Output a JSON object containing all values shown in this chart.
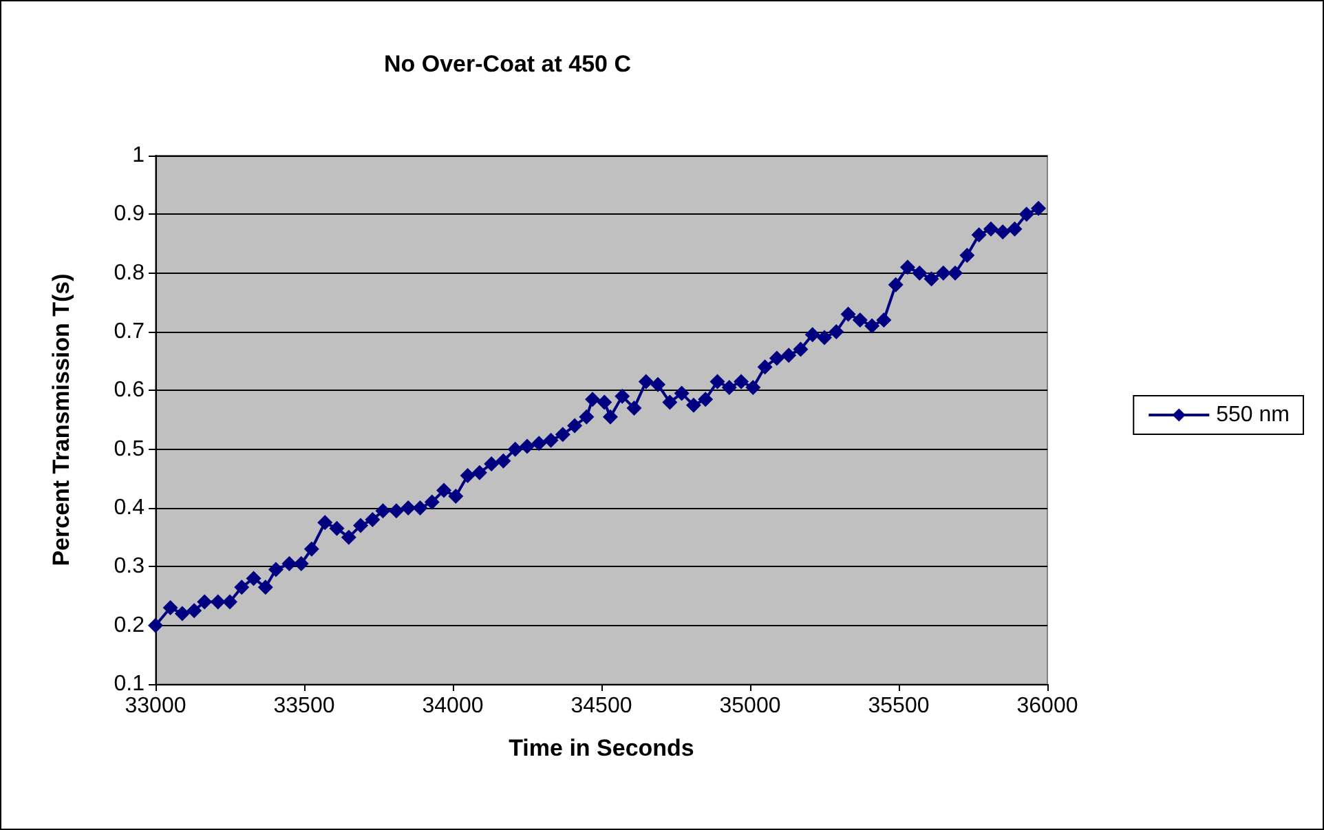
{
  "chart_data": {
    "type": "line",
    "title": "No Over-Coat at 450 C",
    "xlabel": "Time in Seconds",
    "ylabel": "Percent Transmission T(s)",
    "x": [
      33000,
      33050,
      33090,
      33130,
      33165,
      33210,
      33250,
      33290,
      33330,
      33370,
      33405,
      33450,
      33490,
      33525,
      33570,
      33610,
      33650,
      33690,
      33730,
      33765,
      33810,
      33850,
      33890,
      33930,
      33970,
      34010,
      34050,
      34090,
      34130,
      34170,
      34210,
      34250,
      34290,
      34330,
      34370,
      34410,
      34450,
      34470,
      34510,
      34530,
      34570,
      34610,
      34650,
      34690,
      34730,
      34770,
      34810,
      34850,
      34890,
      34930,
      34970,
      35010,
      35050,
      35090,
      35130,
      35170,
      35210,
      35250,
      35290,
      35330,
      35370,
      35410,
      35450,
      35490,
      35530,
      35570,
      35610,
      35650,
      35690,
      35730,
      35770,
      35810,
      35850,
      35890,
      35930,
      35970
    ],
    "series": [
      {
        "name": "550 nm",
        "color": "#000080",
        "values": [
          0.2,
          0.23,
          0.22,
          0.225,
          0.24,
          0.24,
          0.24,
          0.265,
          0.28,
          0.265,
          0.295,
          0.305,
          0.305,
          0.33,
          0.375,
          0.365,
          0.35,
          0.37,
          0.38,
          0.395,
          0.395,
          0.4,
          0.4,
          0.41,
          0.43,
          0.42,
          0.455,
          0.46,
          0.475,
          0.48,
          0.5,
          0.505,
          0.51,
          0.515,
          0.525,
          0.54,
          0.555,
          0.585,
          0.58,
          0.555,
          0.59,
          0.57,
          0.615,
          0.61,
          0.58,
          0.595,
          0.575,
          0.585,
          0.615,
          0.605,
          0.615,
          0.605,
          0.64,
          0.655,
          0.66,
          0.67,
          0.695,
          0.69,
          0.7,
          0.73,
          0.72,
          0.71,
          0.72,
          0.78,
          0.81,
          0.8,
          0.79,
          0.8,
          0.8,
          0.83,
          0.865,
          0.875,
          0.87,
          0.875,
          0.9,
          0.91
        ]
      }
    ],
    "xlim": [
      33000,
      36000
    ],
    "xticks": [
      33000,
      33500,
      34000,
      34500,
      35000,
      35500,
      36000
    ],
    "ylim": [
      0.1,
      1
    ],
    "yticks": [
      0.1,
      0.2,
      0.3,
      0.4,
      0.5,
      0.6,
      0.7,
      0.8,
      0.9,
      1
    ],
    "grid": "y",
    "legend": "right",
    "marker": "diamond",
    "line_style": "solid"
  }
}
